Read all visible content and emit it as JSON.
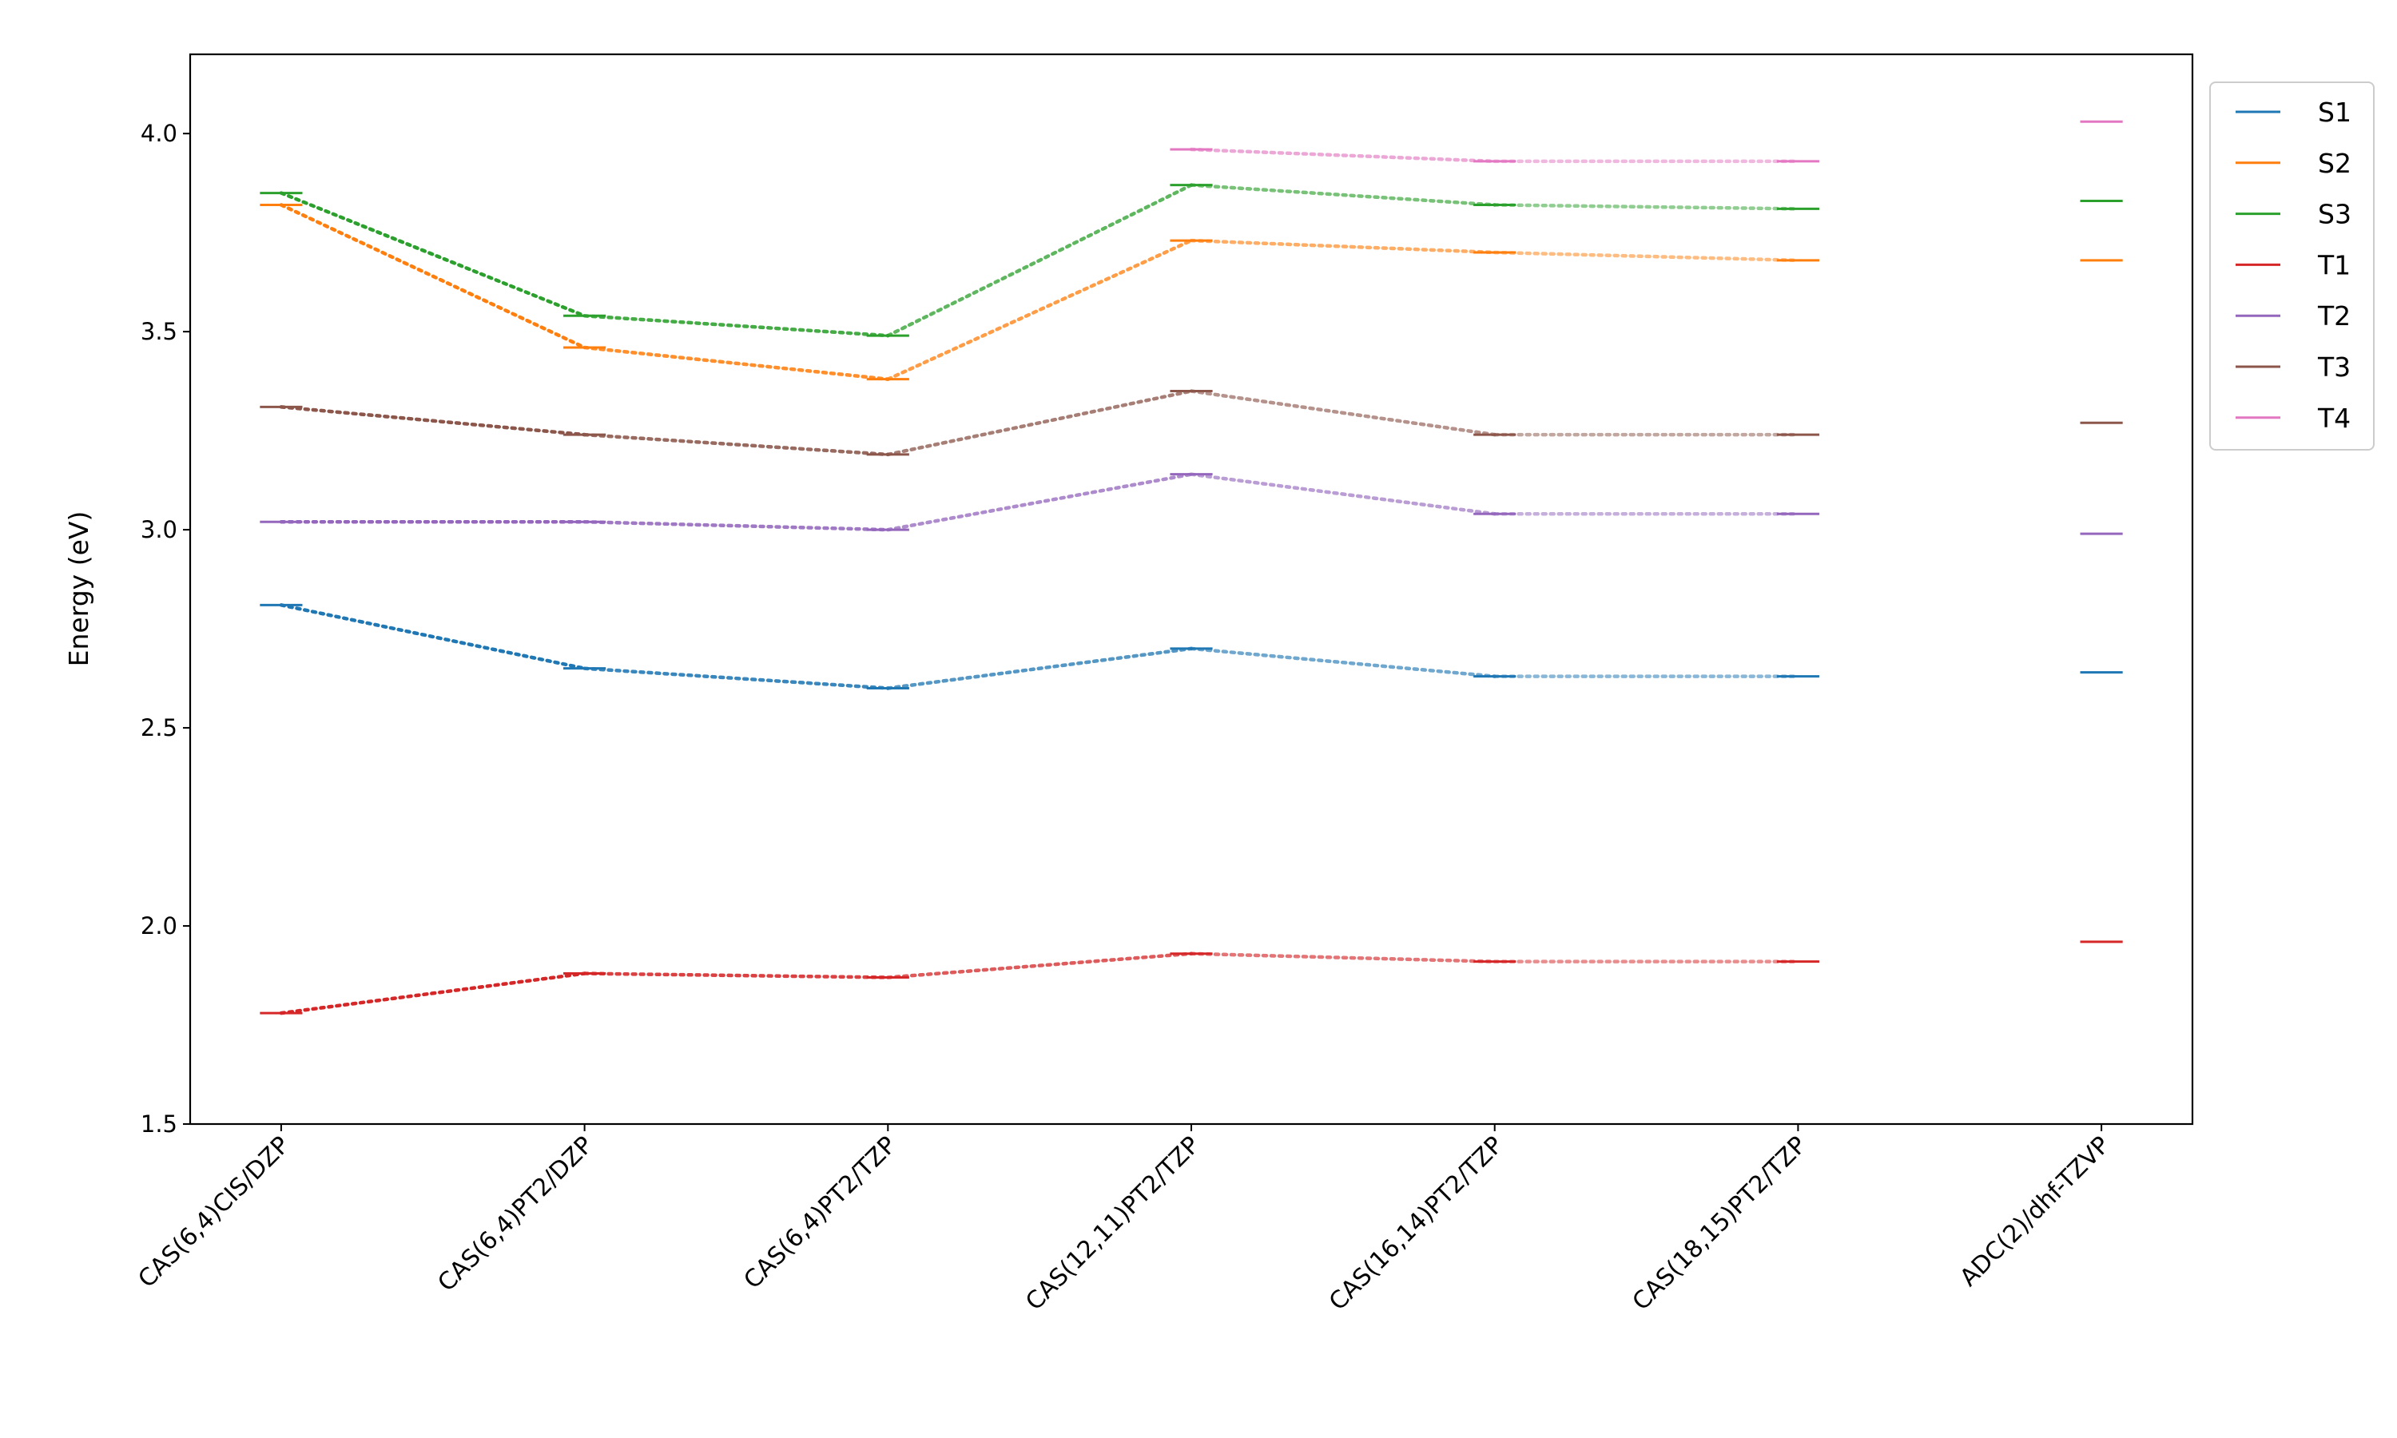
{
  "chart_data": {
    "type": "line",
    "title": "",
    "xlabel": "",
    "ylabel": "Energy (eV)",
    "ylim": [
      1.5,
      4.2
    ],
    "xlim": [
      -0.3,
      6.3
    ],
    "yticks": [
      "1.5",
      "2.0",
      "2.5",
      "3.0",
      "3.5",
      "4.0"
    ],
    "grid": false,
    "legend_placement": "outside-top-right",
    "categories": [
      "CAS(6,4)CIS/DZP",
      "CAS(6,4)PT2/DZP",
      "CAS(6,4)PT2/TZP",
      "CAS(12,11)PT2/TZP",
      "CAS(16,14)PT2/TZP",
      "CAS(18,15)PT2/TZP",
      "ADC(2)/dhf-TZVP"
    ],
    "series": [
      {
        "name": "S1",
        "color": "#1f77b4",
        "values": [
          2.81,
          2.65,
          2.6,
          2.7,
          2.63,
          2.63,
          2.64
        ]
      },
      {
        "name": "S2",
        "color": "#ff7f0e",
        "values": [
          3.82,
          3.46,
          3.38,
          3.73,
          3.7,
          3.68,
          3.68
        ]
      },
      {
        "name": "S3",
        "color": "#2ca02c",
        "values": [
          3.85,
          3.54,
          3.49,
          3.87,
          3.82,
          3.81,
          3.83
        ]
      },
      {
        "name": "T1",
        "color": "#d62728",
        "values": [
          1.78,
          1.88,
          1.87,
          1.93,
          1.91,
          1.91,
          1.96
        ]
      },
      {
        "name": "T2",
        "color": "#9467bd",
        "values": [
          3.02,
          3.02,
          3.0,
          3.14,
          3.04,
          3.04,
          2.99
        ]
      },
      {
        "name": "T3",
        "color": "#8c564b",
        "values": [
          3.31,
          3.24,
          3.19,
          3.35,
          3.24,
          3.24,
          3.27
        ]
      },
      {
        "name": "T4",
        "color": "#e377c2",
        "values": [
          null,
          null,
          null,
          3.96,
          3.93,
          3.93,
          4.03
        ]
      }
    ]
  }
}
